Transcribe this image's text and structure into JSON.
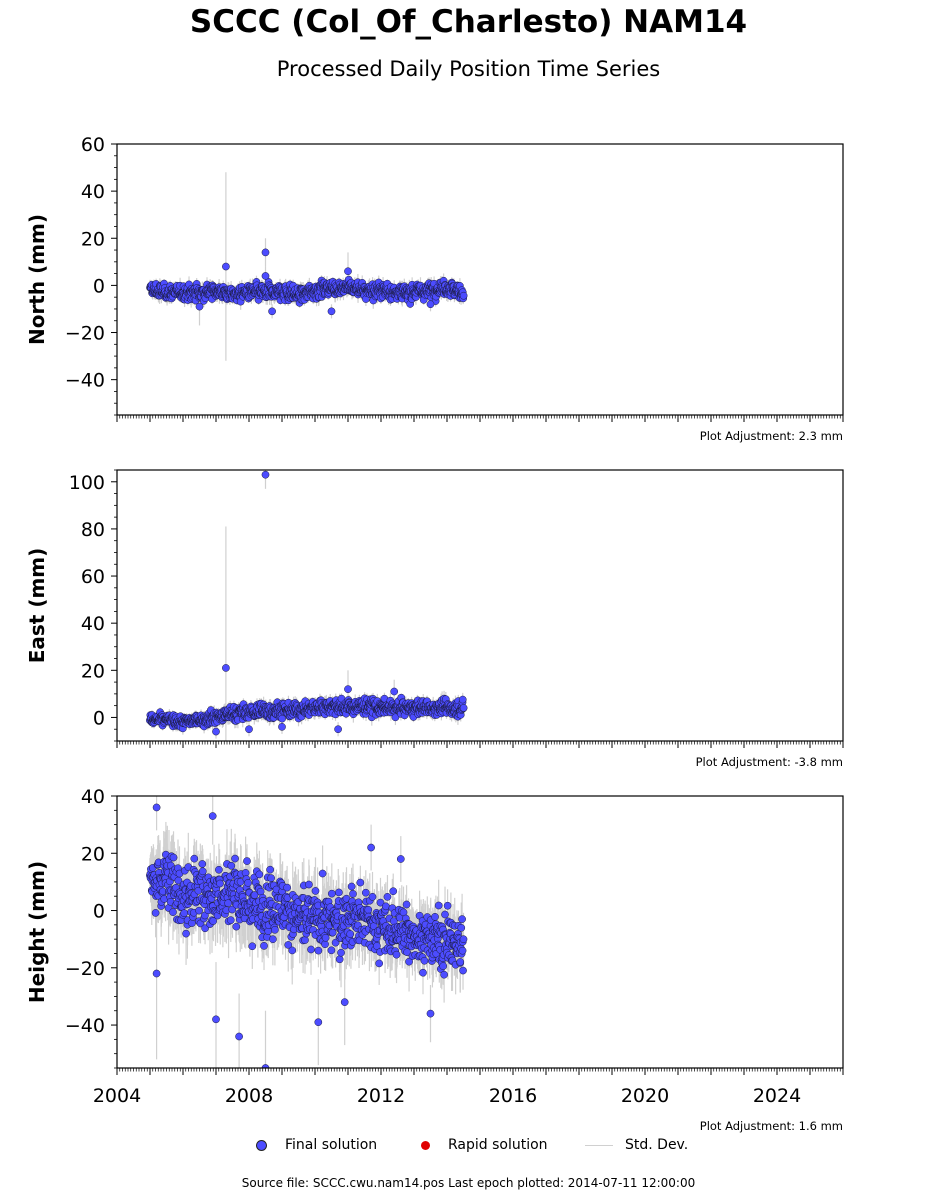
{
  "title": "SCCC (Col_Of_Charlesto) NAM14",
  "subtitle": "Processed Daily Position Time Series",
  "chart_data": [
    {
      "type": "scatter",
      "ylabel": "North (mm)",
      "ylim": [
        -55,
        60
      ],
      "yticks": [
        -40,
        -20,
        0,
        20,
        40,
        60
      ],
      "xlim": [
        2004.0,
        2026.0
      ],
      "adjustment": "Plot Adjustment: 2.3 mm",
      "envelope": {
        "x": [
          2005.0,
          2005.5,
          2006.0,
          2006.5,
          2007.0,
          2007.5,
          2008.0,
          2008.5,
          2009.0,
          2009.5,
          2010.0,
          2010.5,
          2011.0,
          2011.5,
          2012.0,
          2012.5,
          2013.0,
          2013.5,
          2014.0,
          2014.5
        ],
        "center": [
          -2,
          -3,
          -3,
          -3,
          -2,
          -4,
          -3,
          -3,
          -3,
          -4,
          -2,
          -1,
          -1,
          -2,
          -2,
          -3,
          -3,
          -2,
          -1,
          -3
        ],
        "spread": [
          4,
          4,
          4,
          4,
          4,
          4,
          4,
          4,
          4,
          4,
          4,
          4,
          4,
          4,
          4,
          4,
          4,
          4,
          4,
          4
        ]
      },
      "outliers": [
        {
          "x": 2007.3,
          "y": 8,
          "err": 40
        },
        {
          "x": 2008.5,
          "y": 14,
          "err": 6
        },
        {
          "x": 2008.5,
          "y": 4,
          "err": 4
        },
        {
          "x": 2008.7,
          "y": -11,
          "err": 3
        },
        {
          "x": 2010.5,
          "y": -11,
          "err": 3
        },
        {
          "x": 2011.0,
          "y": 6,
          "err": 8
        },
        {
          "x": 2006.5,
          "y": -9,
          "err": 8
        },
        {
          "x": 2013.5,
          "y": -8,
          "err": 3
        }
      ]
    },
    {
      "type": "scatter",
      "ylabel": "East (mm)",
      "ylim": [
        -10,
        105
      ],
      "yticks": [
        0,
        20,
        40,
        60,
        80,
        100
      ],
      "xlim": [
        2004.0,
        2026.0
      ],
      "adjustment": "Plot Adjustment: -3.8 mm",
      "envelope": {
        "x": [
          2005.0,
          2005.5,
          2006.0,
          2006.5,
          2007.0,
          2007.5,
          2008.0,
          2008.5,
          2009.0,
          2009.5,
          2010.0,
          2010.5,
          2011.0,
          2011.5,
          2012.0,
          2012.5,
          2013.0,
          2013.5,
          2014.0,
          2014.5
        ],
        "center": [
          -1,
          -1,
          -2,
          -1,
          0,
          2,
          2,
          3,
          3,
          3,
          4,
          5,
          4,
          5,
          4,
          4,
          4,
          4,
          4,
          4
        ],
        "spread": [
          3,
          3,
          3,
          3,
          4,
          4,
          4,
          4,
          4,
          4,
          4,
          4,
          4,
          4,
          4,
          4,
          4,
          4,
          4,
          4
        ]
      },
      "outliers": [
        {
          "x": 2008.5,
          "y": 103,
          "err": 6
        },
        {
          "x": 2007.3,
          "y": 21,
          "err": 60
        },
        {
          "x": 2007.0,
          "y": -6,
          "err": 3
        },
        {
          "x": 2008.0,
          "y": -5,
          "err": 3
        },
        {
          "x": 2009.0,
          "y": -4,
          "err": 3
        },
        {
          "x": 2010.7,
          "y": -5,
          "err": 3
        },
        {
          "x": 2011.0,
          "y": 12,
          "err": 8
        },
        {
          "x": 2012.4,
          "y": 11,
          "err": 5
        }
      ]
    },
    {
      "type": "scatter",
      "ylabel": "Height (mm)",
      "ylim": [
        -55,
        40
      ],
      "yticks": [
        -40,
        -20,
        0,
        20,
        40
      ],
      "xlim": [
        2004.0,
        2026.0
      ],
      "xticks": [
        2004,
        2008,
        2012,
        2016,
        2020,
        2024
      ],
      "adjustment": "Plot Adjustment: 1.6 mm",
      "envelope": {
        "x": [
          2005.0,
          2005.5,
          2006.0,
          2006.5,
          2007.0,
          2007.5,
          2008.0,
          2008.5,
          2009.0,
          2009.5,
          2010.0,
          2010.5,
          2011.0,
          2011.5,
          2012.0,
          2012.5,
          2013.0,
          2013.5,
          2014.0,
          2014.5
        ],
        "center": [
          10,
          12,
          4,
          6,
          5,
          8,
          4,
          2,
          2,
          -3,
          -3,
          -4,
          -2,
          -4,
          -6,
          -7,
          -8,
          -10,
          -10,
          -12
        ],
        "spread": [
          14,
          16,
          14,
          14,
          14,
          16,
          14,
          14,
          14,
          14,
          14,
          14,
          14,
          14,
          12,
          12,
          12,
          12,
          12,
          12
        ]
      },
      "outliers": [
        {
          "x": 2005.2,
          "y": 36,
          "err": 8
        },
        {
          "x": 2005.2,
          "y": -22,
          "err": 30
        },
        {
          "x": 2007.0,
          "y": -38,
          "err": 20
        },
        {
          "x": 2007.7,
          "y": -44,
          "err": 15
        },
        {
          "x": 2008.5,
          "y": -55,
          "err": 20
        },
        {
          "x": 2010.1,
          "y": -39,
          "err": 15
        },
        {
          "x": 2010.9,
          "y": -32,
          "err": 15
        },
        {
          "x": 2013.5,
          "y": -36,
          "err": 10
        },
        {
          "x": 2006.9,
          "y": 33,
          "err": 10
        },
        {
          "x": 2011.7,
          "y": 22,
          "err": 8
        },
        {
          "x": 2012.6,
          "y": 18,
          "err": 8
        }
      ]
    }
  ],
  "legend": {
    "final": "Final solution",
    "rapid": "Rapid solution",
    "stddev": "Std. Dev."
  },
  "colors": {
    "final": "#4c4cff",
    "rapid": "#e00000",
    "stddev": "#d0d0d0"
  },
  "source": "Source file: SCCC.cwu.nam14.pos  Last epoch plotted: 2014-07-11 12:00:00"
}
